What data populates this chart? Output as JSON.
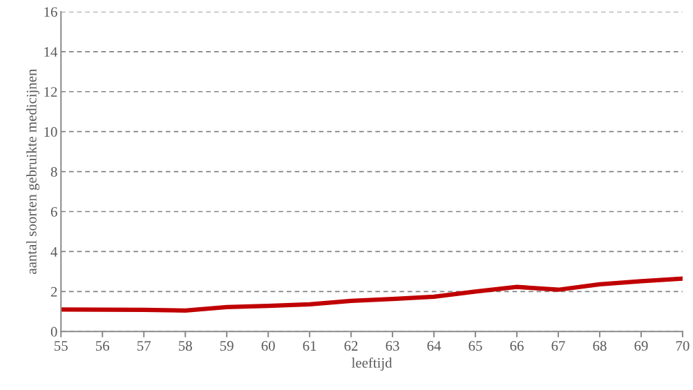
{
  "chart_data": {
    "type": "line",
    "xlabel": "leeftijd",
    "ylabel": "aantal soorten gebruikte medicijnen",
    "x": [
      55,
      56,
      57,
      58,
      59,
      60,
      61,
      62,
      63,
      64,
      65,
      66,
      67,
      68,
      69,
      70
    ],
    "series": [
      {
        "color": "#c00000",
        "values": [
          1.1,
          1.09,
          1.08,
          1.05,
          1.22,
          1.28,
          1.36,
          1.53,
          1.63,
          1.74,
          2.0,
          2.23,
          2.09,
          2.36,
          2.52,
          2.65
        ]
      }
    ],
    "xlim": [
      55,
      70
    ],
    "xticks": [
      55,
      56,
      57,
      58,
      59,
      60,
      61,
      62,
      63,
      64,
      65,
      66,
      67,
      68,
      69,
      70
    ],
    "ylim": [
      0,
      16
    ],
    "yticks": [
      0,
      2,
      4,
      6,
      8,
      10,
      12,
      14,
      16
    ],
    "grid": "y",
    "legend": false,
    "marker": "none",
    "line_style": "solid"
  }
}
